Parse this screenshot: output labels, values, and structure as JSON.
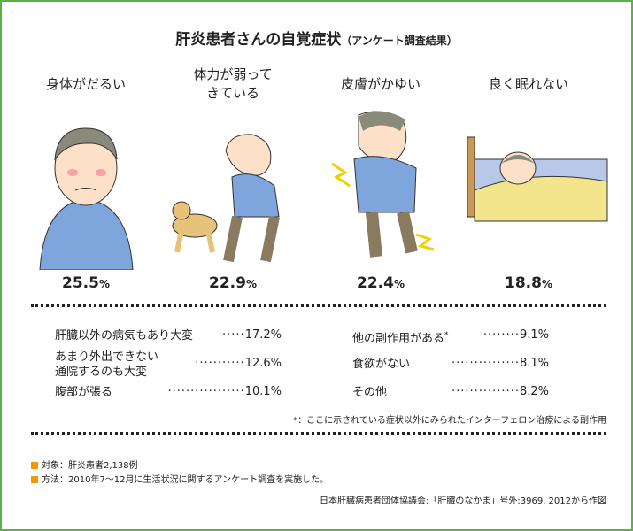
{
  "title": "肝炎患者さんの自覚症状",
  "subtitle": "（アンケート調査結果）",
  "symptoms": [
    {
      "label": "身体がだるい",
      "value": "25.5",
      "unit": "%"
    },
    {
      "label": "体力が弱って",
      "label2": "きている",
      "value": "22.9",
      "unit": "%"
    },
    {
      "label": "皮膚がかゆい",
      "value": "22.4",
      "unit": "%"
    },
    {
      "label": "良く眠れない",
      "value": "18.8",
      "unit": "%"
    }
  ],
  "others_left": [
    {
      "label": "肝臓以外の病気もあり大変",
      "leader": "·····",
      "value": "17.2%"
    },
    {
      "label": "あまり外出できない",
      "label2": "通院するのも大変",
      "leader": "···········",
      "value": "12.6%"
    },
    {
      "label": "腹部が張る",
      "leader": "·················",
      "value": "10.1%"
    }
  ],
  "others_right": [
    {
      "label": "他の副作用がある",
      "mark": "*",
      "leader": "········",
      "value": "9.1%"
    },
    {
      "label": "食欲がない",
      "leader": "···············",
      "value": "8.1%"
    },
    {
      "label": "その他",
      "leader": "···············",
      "value": "8.2%"
    }
  ],
  "footnote": "*：ここに示されている症状以外にみられたインターフェロン治療による副作用",
  "subjects": "対象：肝炎患者2,138例",
  "method": "方法：2010年7～12月に生活状況に関するアンケート調査を実施した。",
  "source": "日本肝臓病患者団体協議会:「肝臓のなかま」号外:3969, 2012から作図",
  "colors": {
    "border": "#5bb04a",
    "bullet": "#f39800",
    "shirt": "#7ea6dc",
    "hair": "#8a8a7a"
  }
}
